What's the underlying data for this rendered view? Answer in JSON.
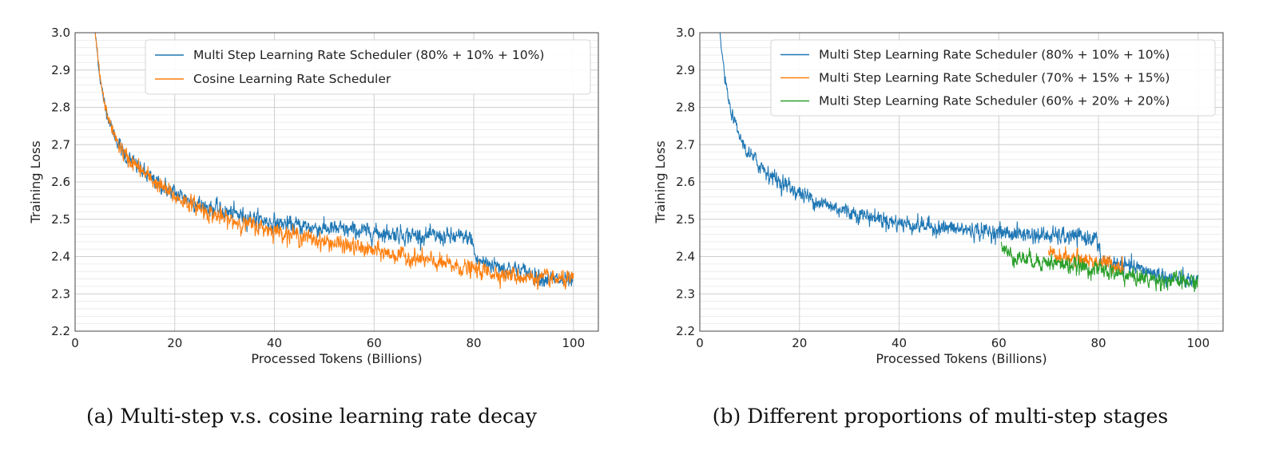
{
  "chart_data": [
    {
      "type": "line",
      "id": "a",
      "caption": "(a) Multi-step v.s. cosine learning rate decay",
      "xlabel": "Processed Tokens (Billions)",
      "ylabel": "Training Loss",
      "xlim": [
        0,
        105
      ],
      "ylim": [
        2.2,
        3.0
      ],
      "xticks": [
        0,
        20,
        40,
        60,
        80,
        100
      ],
      "yticks": [
        2.2,
        2.3,
        2.4,
        2.5,
        2.6,
        2.7,
        2.8,
        2.9,
        3.0
      ],
      "grid": true,
      "legend": "top-right",
      "series": [
        {
          "name": "Multi Step Learning Rate Scheduler (80% + 10% + 10%)",
          "color": "#1f77b4",
          "x": [
            4,
            5,
            6,
            8,
            10,
            15,
            20,
            25,
            30,
            40,
            50,
            60,
            70,
            79.5,
            80.5,
            85,
            90,
            95,
            100
          ],
          "y": [
            3.0,
            2.88,
            2.8,
            2.72,
            2.67,
            2.61,
            2.57,
            2.54,
            2.52,
            2.49,
            2.475,
            2.465,
            2.455,
            2.45,
            2.39,
            2.375,
            2.36,
            2.34,
            2.33
          ]
        },
        {
          "name": "Cosine Learning Rate Scheduler",
          "color": "#ff7f0e",
          "x": [
            4,
            5,
            6,
            8,
            10,
            15,
            20,
            25,
            30,
            40,
            50,
            60,
            70,
            80,
            85,
            90,
            95,
            100
          ],
          "y": [
            3.0,
            2.88,
            2.8,
            2.72,
            2.67,
            2.61,
            2.56,
            2.53,
            2.5,
            2.47,
            2.44,
            2.415,
            2.39,
            2.365,
            2.355,
            2.345,
            2.34,
            2.335
          ]
        }
      ]
    },
    {
      "type": "line",
      "id": "b",
      "caption": "(b) Different proportions of multi-step stages",
      "xlabel": "Processed Tokens (Billions)",
      "ylabel": "Training Loss",
      "xlim": [
        0,
        105
      ],
      "ylim": [
        2.2,
        3.0
      ],
      "xticks": [
        0,
        20,
        40,
        60,
        80,
        100
      ],
      "yticks": [
        2.2,
        2.3,
        2.4,
        2.5,
        2.6,
        2.7,
        2.8,
        2.9,
        3.0
      ],
      "grid": true,
      "legend": "top-right",
      "series": [
        {
          "name": "Multi Step Learning Rate Scheduler (80% + 10% + 10%)",
          "color": "#1f77b4",
          "x": [
            4,
            5,
            6,
            8,
            10,
            15,
            20,
            25,
            30,
            40,
            50,
            60,
            70,
            79.5,
            80.5,
            85,
            90,
            95,
            100
          ],
          "y": [
            3.0,
            2.88,
            2.8,
            2.72,
            2.67,
            2.61,
            2.57,
            2.54,
            2.52,
            2.49,
            2.475,
            2.465,
            2.455,
            2.45,
            2.39,
            2.375,
            2.36,
            2.34,
            2.33
          ]
        },
        {
          "name": "Multi Step Learning Rate Scheduler (70% + 15% + 15%)",
          "color": "#ff7f0e",
          "x": [
            70,
            72,
            75,
            78,
            80,
            82,
            85
          ],
          "y": [
            2.405,
            2.4,
            2.395,
            2.39,
            2.385,
            2.38,
            2.375
          ]
        },
        {
          "name": "Multi Step Learning Rate Scheduler (60% + 20% + 20%)",
          "color": "#2ca02c",
          "x": [
            60.5,
            62,
            65,
            70,
            75,
            80,
            85,
            90,
            95,
            100
          ],
          "y": [
            2.43,
            2.405,
            2.395,
            2.385,
            2.375,
            2.365,
            2.35,
            2.34,
            2.335,
            2.33
          ]
        }
      ]
    }
  ]
}
